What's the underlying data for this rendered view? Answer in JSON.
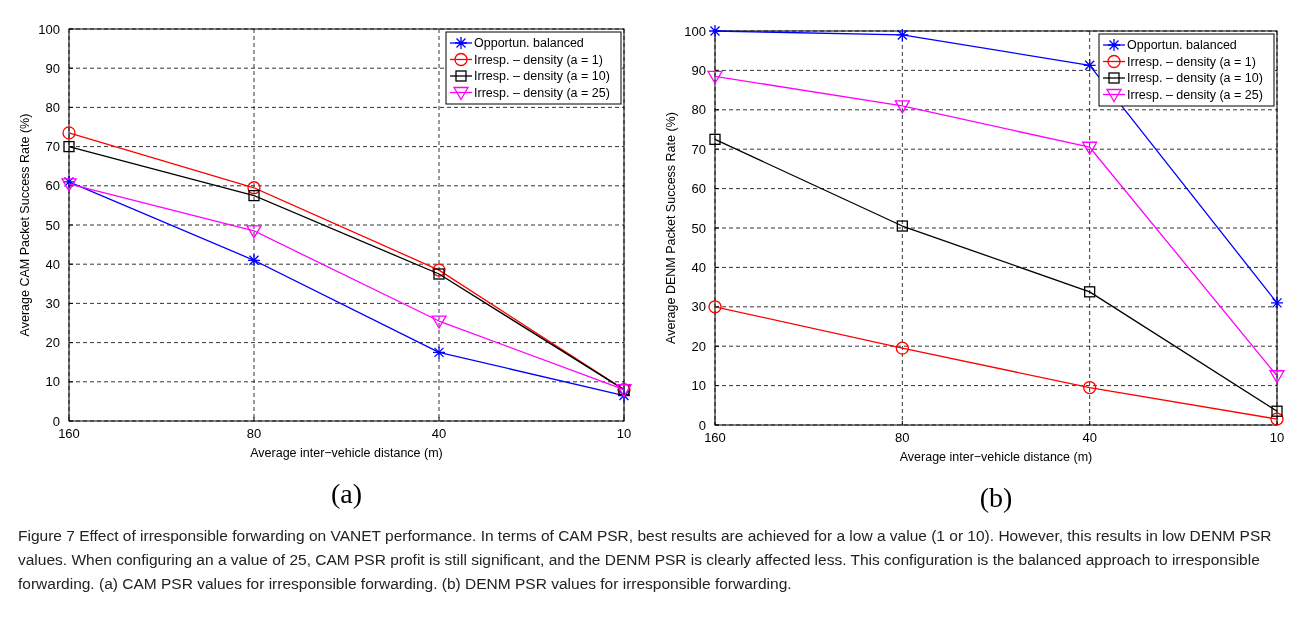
{
  "chart_data": [
    {
      "type": "line",
      "xlabel": "Average inter−vehicle distance (m)",
      "ylabel": "Average CAM Packet Success Rate (%)",
      "categories": [
        "160",
        "80",
        "40",
        "10"
      ],
      "ylim": [
        0,
        100
      ],
      "yticks": [
        0,
        10,
        20,
        30,
        40,
        50,
        60,
        70,
        80,
        90,
        100
      ],
      "grid": true,
      "legend": "top right",
      "series": [
        {
          "name": "Opportun. balanced",
          "color": "#0000ff",
          "marker": "cross",
          "values": [
            61,
            41,
            17.5,
            6.5
          ]
        },
        {
          "name": "Irresp. – density (a = 1)",
          "color": "#ff0000",
          "marker": "circle",
          "values": [
            73.5,
            59.5,
            38.5,
            8
          ]
        },
        {
          "name": "Irresp. – density (a = 10)",
          "color": "#000000",
          "marker": "square",
          "values": [
            70,
            57.5,
            37.5,
            8
          ]
        },
        {
          "name": "Irresp. – density (a = 25)",
          "color": "#ff00ff",
          "marker": "triangle",
          "values": [
            60.5,
            48.5,
            25.5,
            8
          ]
        }
      ],
      "annotations": [
        "(a)",
        "Figure 7 Effect of irresponsible forwarding on VANET performance. In terms of CAM PSR, best results are achieved for a low a value (1 or 10). However, this results in low DENM PSR values. When configuring an a value of 25, CAM PSR profit is still significant, and the DENM PSR is clearly affected less. This configuration is the balanced approach to irresponsible forwarding. (a) CAM PSR values for irresponsible forwarding. (b) DENM PSR values for irresponsible forwarding."
      ]
    },
    {
      "type": "line",
      "xlabel": "Average inter−vehicle distance (m)",
      "ylabel": "Average DENM Packet Success Rate (%)",
      "categories": [
        "160",
        "80",
        "40",
        "10"
      ],
      "ylim": [
        0,
        100
      ],
      "yticks": [
        0,
        10,
        20,
        30,
        40,
        50,
        60,
        70,
        80,
        90,
        100
      ],
      "grid": true,
      "legend": "top right",
      "series": [
        {
          "name": "Opportun. balanced",
          "color": "#0000ff",
          "marker": "cross",
          "values": [
            100,
            99,
            91.3,
            31
          ]
        },
        {
          "name": "Irresp. – density (a = 1)",
          "color": "#ff0000",
          "marker": "circle",
          "values": [
            30,
            19.5,
            9.5,
            1.5
          ]
        },
        {
          "name": "Irresp. – density (a = 10)",
          "color": "#000000",
          "marker": "square",
          "values": [
            72.5,
            50.5,
            33.8,
            3.5
          ]
        },
        {
          "name": "Irresp. – density (a = 25)",
          "color": "#ff00ff",
          "marker": "triangle",
          "values": [
            88.5,
            81,
            70.5,
            12.5
          ]
        }
      ],
      "annotations": [
        "(b)"
      ]
    }
  ]
}
